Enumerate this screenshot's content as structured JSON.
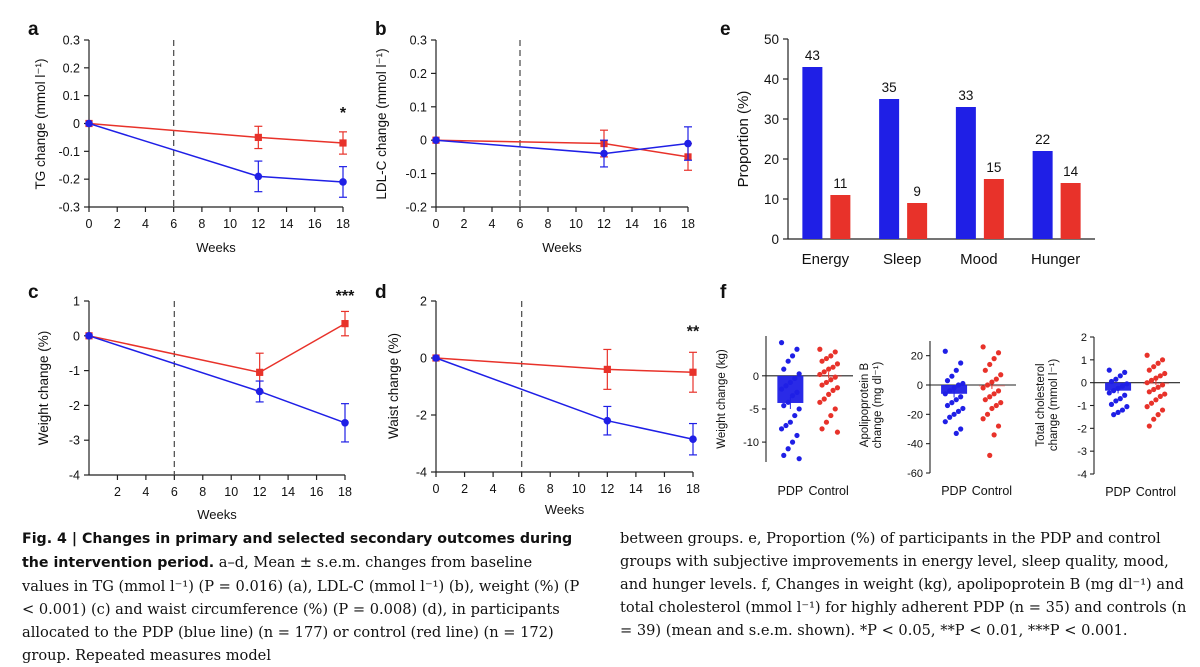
{
  "colors": {
    "pdp": "#1f1fe6",
    "control": "#e8322a",
    "axis": "#222222",
    "dashed": "#555555"
  },
  "panel_letters": [
    "a",
    "b",
    "c",
    "d",
    "e",
    "f"
  ],
  "chart_data": [
    {
      "id": "a",
      "type": "line",
      "ylabel": "TG change (mmol l⁻¹)",
      "xlabel": "Weeks",
      "xlim": [
        0,
        18
      ],
      "ylim": [
        -0.3,
        0.3
      ],
      "xticks": [
        "0",
        "2",
        "4",
        "6",
        "8",
        "10",
        "12",
        "14",
        "16",
        "18"
      ],
      "yticks": [
        "0.3",
        "0.2",
        "0.1",
        "0",
        "-0.1",
        "-0.2",
        "-0.3"
      ],
      "dashed_x": 6,
      "series": [
        {
          "name": "PDP",
          "color": "#1f1fe6",
          "marker": "circle",
          "x": [
            0,
            12,
            18
          ],
          "y": [
            0,
            -0.19,
            -0.21
          ],
          "err": [
            0,
            0.055,
            0.055
          ]
        },
        {
          "name": "Control",
          "color": "#e8322a",
          "marker": "square",
          "x": [
            0,
            12,
            18
          ],
          "y": [
            0,
            -0.05,
            -0.07
          ],
          "err": [
            0,
            0.04,
            0.04
          ]
        }
      ],
      "annotations": [
        {
          "text": "*",
          "x": 18,
          "y": 0.02
        }
      ]
    },
    {
      "id": "b",
      "type": "line",
      "ylabel": "LDL-C change (mmol l⁻¹)",
      "xlabel": "Weeks",
      "xlim": [
        0,
        18
      ],
      "ylim": [
        -0.2,
        0.3
      ],
      "xticks": [
        "0",
        "2",
        "4",
        "6",
        "8",
        "10",
        "12",
        "14",
        "16",
        "18"
      ],
      "yticks": [
        "0.3",
        "0.2",
        "0.1",
        "0",
        "-0.1",
        "-0.2"
      ],
      "dashed_x": 6,
      "series": [
        {
          "name": "PDP",
          "color": "#1f1fe6",
          "marker": "circle",
          "x": [
            0,
            12,
            18
          ],
          "y": [
            0,
            -0.04,
            -0.01
          ],
          "err": [
            0,
            0.04,
            0.05
          ]
        },
        {
          "name": "Control",
          "color": "#e8322a",
          "marker": "square",
          "x": [
            0,
            12,
            18
          ],
          "y": [
            0,
            -0.01,
            -0.05
          ],
          "err": [
            0,
            0.04,
            0.04
          ]
        }
      ],
      "annotations": []
    },
    {
      "id": "c",
      "type": "line",
      "ylabel": "Weight change (%)",
      "xlabel": "Weeks",
      "xlim": [
        0,
        18
      ],
      "ylim": [
        -4,
        1
      ],
      "xticks": [
        "2",
        "4",
        "6",
        "8",
        "10",
        "12",
        "14",
        "16",
        "18"
      ],
      "yticks": [
        "1",
        "0",
        "-1",
        "-2",
        "-3",
        "-4"
      ],
      "dashed_x": 6,
      "series": [
        {
          "name": "PDP",
          "color": "#1f1fe6",
          "marker": "circle",
          "x": [
            0,
            12,
            18
          ],
          "y": [
            0,
            -1.6,
            -2.5
          ],
          "err": [
            0,
            0.3,
            0.55
          ]
        },
        {
          "name": "Control",
          "color": "#e8322a",
          "marker": "square",
          "x": [
            0,
            12,
            18
          ],
          "y": [
            0,
            -1.05,
            0.35
          ],
          "err": [
            0,
            0.55,
            0.35
          ]
        }
      ],
      "annotations": [
        {
          "text": "***",
          "x": 18,
          "y": 1.0
        }
      ]
    },
    {
      "id": "d",
      "type": "line",
      "ylabel": "Waist change (%)",
      "xlabel": "Weeks",
      "xlim": [
        0,
        18
      ],
      "ylim": [
        -4,
        2
      ],
      "xticks": [
        "0",
        "2",
        "4",
        "6",
        "8",
        "10",
        "12",
        "14",
        "16",
        "18"
      ],
      "yticks": [
        "2",
        "0",
        "-2",
        "-4"
      ],
      "dashed_x": 6,
      "series": [
        {
          "name": "PDP",
          "color": "#1f1fe6",
          "marker": "circle",
          "x": [
            0,
            12,
            18
          ],
          "y": [
            0,
            -2.2,
            -2.85
          ],
          "err": [
            0,
            0.5,
            0.55
          ]
        },
        {
          "name": "Control",
          "color": "#e8322a",
          "marker": "square",
          "x": [
            0,
            12,
            18
          ],
          "y": [
            0,
            -0.4,
            -0.5
          ],
          "err": [
            0,
            0.7,
            0.7
          ]
        }
      ],
      "annotations": [
        {
          "text": "**",
          "x": 18,
          "y": 0.75
        }
      ]
    },
    {
      "id": "e",
      "type": "bar",
      "ylabel": "Proportion (%)",
      "ylim": [
        0,
        50
      ],
      "yticks": [
        "50",
        "40",
        "30",
        "20",
        "10",
        "0"
      ],
      "categories": [
        "Energy",
        "Sleep",
        "Mood",
        "Hunger"
      ],
      "series": [
        {
          "name": "PDP",
          "color": "#1f1fe6",
          "values": [
            43,
            35,
            33,
            22
          ]
        },
        {
          "name": "Control",
          "color": "#e8322a",
          "values": [
            11,
            9,
            15,
            14
          ]
        }
      ]
    },
    {
      "id": "f1",
      "type": "scatter",
      "ylabel": "Weight change (kg)",
      "ylim": [
        -13,
        6
      ],
      "yticks": [
        "0",
        "-5",
        "-10"
      ],
      "categories": [
        "PDP",
        "Control"
      ],
      "means": [
        -4.1,
        0.1
      ],
      "sem": [
        0.9,
        0.45
      ],
      "points": [
        [
          5,
          4,
          3,
          2.2,
          1,
          0.3,
          -0.4,
          -1,
          -1.5,
          -2,
          -2.5,
          -3,
          -4,
          -4.5,
          -5,
          -6,
          -7,
          -7.5,
          -8,
          -9,
          -10,
          -11,
          -12,
          -12.5
        ],
        [
          4,
          3.6,
          3,
          2.6,
          2.2,
          1.8,
          1.3,
          1,
          0.6,
          0.2,
          -0.2,
          -0.6,
          -1,
          -1.4,
          -1.8,
          -2.2,
          -2.8,
          -3.5,
          -4,
          -5,
          -6,
          -7,
          -8,
          -8.5
        ]
      ]
    },
    {
      "id": "f2",
      "type": "scatter",
      "ylabel": "Apolipoprotein B change (mg dl⁻¹)",
      "ylim": [
        -60,
        30
      ],
      "yticks": [
        "20",
        "0",
        "-20",
        "-40",
        "-60"
      ],
      "categories": [
        "PDP",
        "Control"
      ],
      "means": [
        -6,
        -0.5
      ],
      "sem": [
        2.5,
        2.2
      ],
      "points": [
        [
          23,
          15,
          10,
          6,
          3,
          1,
          0,
          -2,
          -4,
          -6,
          -8,
          -10,
          -12,
          -14,
          -16,
          -18,
          -20,
          -22,
          -25,
          -30,
          -33
        ],
        [
          26,
          22,
          18,
          14,
          10,
          7,
          4,
          2,
          0,
          -2,
          -4,
          -6,
          -8,
          -10,
          -12,
          -14,
          -16,
          -20,
          -23,
          -28,
          -34,
          -48
        ]
      ]
    },
    {
      "id": "f3",
      "type": "scatter",
      "ylabel": "Total cholesterol change (mmol l⁻¹)",
      "ylim": [
        -4,
        2
      ],
      "yticks": [
        "2",
        "1",
        "0",
        "-1",
        "-2",
        "-3",
        "-4"
      ],
      "categories": [
        "PDP",
        "Control"
      ],
      "means": [
        -0.35,
        0.0
      ],
      "sem": [
        0.12,
        0.1
      ],
      "points": [
        [
          0.55,
          0.45,
          0.3,
          0.15,
          0.05,
          -0.05,
          -0.15,
          -0.25,
          -0.35,
          -0.45,
          -0.55,
          -0.7,
          -0.8,
          -0.95,
          -1.05,
          -1.2,
          -1.3,
          -1.4
        ],
        [
          1.2,
          1.0,
          0.85,
          0.7,
          0.55,
          0.4,
          0.3,
          0.2,
          0.1,
          0.0,
          -0.1,
          -0.2,
          -0.3,
          -0.4,
          -0.5,
          -0.6,
          -0.75,
          -0.9,
          -1.05,
          -1.2,
          -1.4,
          -1.6,
          -1.9
        ]
      ]
    }
  ],
  "caption": {
    "lead": "Fig. 4 | Changes in primary and selected secondary outcomes during the intervention period.",
    "left_text": " a–d, Mean ± s.e.m. changes from baseline values in TG (mmol l⁻¹) (P = 0.016) (a), LDL-C (mmol l⁻¹) (b), weight (%) (P < 0.001) (c) and waist circumference (%) (P = 0.008) (d), in participants allocated to the PDP (blue line) (n = 177) or control (red line) (n = 172) group. Repeated measures model",
    "right_text": "between groups. e, Proportion (%) of participants in the PDP and control groups with subjective improvements in energy level, sleep quality, mood, and hunger levels. f, Changes in weight (kg), apolipoprotein B (mg dl⁻¹) and total cholesterol (mmol l⁻¹) for highly adherent PDP (n = 35) and controls (n = 39) (mean and s.e.m. shown). *P < 0.05, **P < 0.01, ***P < 0.001."
  }
}
